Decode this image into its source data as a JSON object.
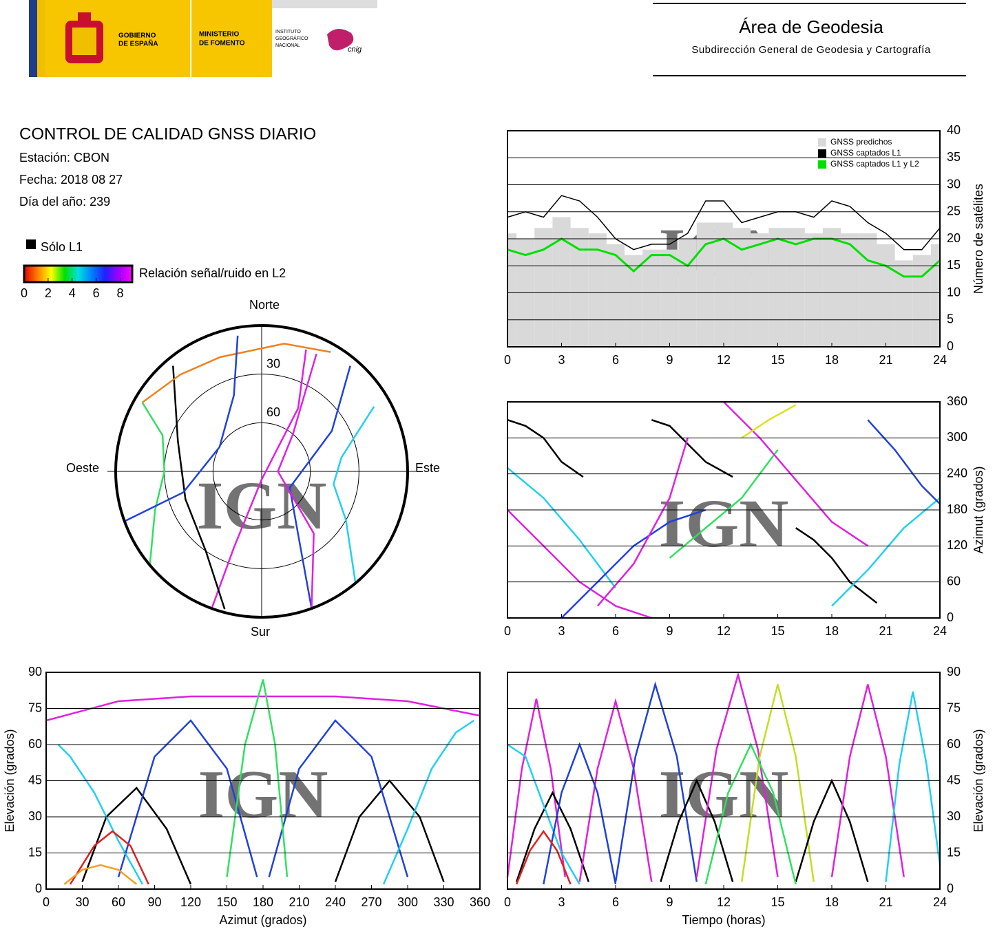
{
  "header": {
    "gobierno": [
      "GOBIERNO",
      "DE ESPAÑA"
    ],
    "ministerio": [
      "MINISTERIO",
      "DE FOMENTO"
    ],
    "instituto": [
      "INSTITUTO",
      "GEOGRÁFICO",
      "NACIONAL"
    ],
    "cnig": "cnig",
    "area": "Área de Geodesia",
    "subdireccion": "Subdirección General de Geodesia y Cartografía"
  },
  "report": {
    "title": "CONTROL DE CALIDAD GNSS DIARIO",
    "station": "Estación: CBON",
    "date": "Fecha: 2018 08 27",
    "doy": "Día del año: 239",
    "l1_only": {
      "label": "Sólo L1",
      "color": "#000000"
    },
    "colorbar": {
      "label": "Relación señal/ruido en L2",
      "range": [
        0,
        9
      ],
      "ticks": [
        0,
        2,
        4,
        6,
        8
      ],
      "colors": [
        "#e00000",
        "#ff8000",
        "#ffff00",
        "#00e000",
        "#00e0e0",
        "#0080ff",
        "#2020ff",
        "#a000ff",
        "#ff00ff"
      ]
    }
  },
  "watermark": "IGN",
  "chart_data": [
    {
      "type": "skyplot",
      "directions": {
        "north": "Norte",
        "south": "Sur",
        "west": "Oeste",
        "east": "Este"
      },
      "rings": [
        30,
        60
      ],
      "series": [
        {
          "color": "#e020e0",
          "azimuth": [
            200,
            200,
            180,
            30,
            20
          ],
          "elevation": [
            0,
            40,
            85,
            45,
            10
          ]
        },
        {
          "color": "#2040e0",
          "azimuth": [
            160,
            150,
            120,
            60,
            40
          ],
          "elevation": [
            0,
            45,
            70,
            40,
            5
          ]
        },
        {
          "color": "#000000",
          "azimuth": [
            195,
            215,
            250,
            290,
            320
          ],
          "elevation": [
            2,
            30,
            40,
            35,
            5
          ]
        },
        {
          "color": "#20d0f0",
          "azimuth": [
            140,
            120,
            100,
            80,
            60
          ],
          "elevation": [
            0,
            30,
            45,
            40,
            10
          ]
        },
        {
          "color": "#30e060",
          "azimuth": [
            230,
            250,
            270,
            290,
            300
          ],
          "elevation": [
            0,
            20,
            30,
            25,
            5
          ]
        },
        {
          "color": "#f08020",
          "azimuth": [
            300,
            320,
            340,
            10,
            30
          ],
          "elevation": [
            5,
            12,
            15,
            10,
            5
          ]
        },
        {
          "color": "#e020e0",
          "azimuth": [
            160,
            140,
            90,
            40,
            25
          ],
          "elevation": [
            0,
            40,
            80,
            60,
            10
          ]
        },
        {
          "color": "#2040e0",
          "azimuth": [
            250,
            255,
            300,
            340,
            350
          ],
          "elevation": [
            0,
            40,
            60,
            40,
            5
          ]
        }
      ]
    },
    {
      "type": "steps",
      "ylabel": "Número de satélites",
      "xlim": [
        0,
        24
      ],
      "xticks": [
        0,
        3,
        6,
        9,
        12,
        15,
        18,
        21,
        24
      ],
      "ylim": [
        0,
        40
      ],
      "yticks": [
        0,
        5,
        10,
        15,
        20,
        25,
        30,
        35,
        40
      ],
      "grid": true,
      "y_axis_side": "right",
      "legend": "top-right",
      "x": [
        0,
        1,
        2,
        3,
        4,
        5,
        6,
        7,
        8,
        9,
        10,
        11,
        12,
        13,
        14,
        15,
        16,
        17,
        18,
        19,
        20,
        21,
        22,
        23,
        24
      ],
      "series": [
        {
          "name": "GNSS predichos",
          "color": "#d9d9d9",
          "style": "area",
          "values": [
            21,
            20,
            22,
            24,
            22,
            21,
            19,
            17,
            18,
            18,
            20,
            23,
            23,
            22,
            21,
            22,
            22,
            21,
            22,
            21,
            21,
            19,
            16,
            17,
            19
          ]
        },
        {
          "name": "GNSS captados L1",
          "color": "#000000",
          "style": "line",
          "values": [
            24,
            25,
            24,
            28,
            27,
            24,
            20,
            18,
            19,
            19,
            21,
            27,
            27,
            23,
            24,
            25,
            25,
            24,
            27,
            26,
            23,
            21,
            18,
            18,
            22
          ]
        },
        {
          "name": "GNSS captados L1 y L2",
          "color": "#00e000",
          "style": "line",
          "values": [
            18,
            17,
            18,
            20,
            18,
            18,
            17,
            14,
            17,
            17,
            15,
            19,
            20,
            18,
            19,
            20,
            19,
            20,
            20,
            19,
            16,
            15,
            13,
            13,
            16
          ]
        }
      ]
    },
    {
      "type": "tracks",
      "ylabel": "Azimut (grados)",
      "xlim": [
        0,
        24
      ],
      "xticks": [
        0,
        3,
        6,
        9,
        12,
        15,
        18,
        21,
        24
      ],
      "ylim": [
        0,
        360
      ],
      "yticks": [
        0,
        60,
        120,
        180,
        240,
        300,
        360
      ],
      "grid": true,
      "y_axis_side": "right",
      "series": [
        {
          "color": "#000000",
          "x": [
            0,
            1,
            2,
            3,
            4.2
          ],
          "values": [
            330,
            320,
            300,
            260,
            235
          ]
        },
        {
          "color": "#e020e0",
          "x": [
            0,
            2,
            4,
            6,
            8
          ],
          "values": [
            180,
            120,
            60,
            20,
            0
          ]
        },
        {
          "color": "#20d0f0",
          "x": [
            0,
            2,
            4,
            6
          ],
          "values": [
            250,
            200,
            130,
            50
          ]
        },
        {
          "color": "#2040e0",
          "x": [
            3,
            5,
            7,
            9,
            11
          ],
          "values": [
            0,
            60,
            120,
            160,
            180
          ]
        },
        {
          "color": "#000000",
          "x": [
            8,
            9,
            10,
            11,
            12.5
          ],
          "values": [
            330,
            320,
            290,
            260,
            235
          ]
        },
        {
          "color": "#30e060",
          "x": [
            9,
            11,
            13,
            15
          ],
          "values": [
            100,
            150,
            200,
            280
          ]
        },
        {
          "color": "#e020e0",
          "x": [
            12,
            14,
            16,
            18,
            20
          ],
          "values": [
            360,
            300,
            230,
            160,
            120
          ]
        },
        {
          "color": "#000000",
          "x": [
            16,
            17,
            18,
            19,
            20.5
          ],
          "values": [
            150,
            130,
            100,
            60,
            25
          ]
        },
        {
          "color": "#e0e020",
          "x": [
            13,
            14.5,
            16
          ],
          "values": [
            300,
            330,
            355
          ]
        },
        {
          "color": "#20d0f0",
          "x": [
            18,
            20,
            22,
            24
          ],
          "values": [
            20,
            80,
            150,
            200
          ]
        },
        {
          "color": "#2040e0",
          "x": [
            20,
            21.5,
            23,
            24
          ],
          "values": [
            330,
            280,
            220,
            190
          ]
        },
        {
          "color": "#e020e0",
          "x": [
            5,
            7,
            9,
            10
          ],
          "values": [
            20,
            90,
            200,
            300
          ]
        }
      ]
    },
    {
      "type": "tracks",
      "ylabel": "Elevación (grados)",
      "xlabel": "Azimut (grados)",
      "xlim": [
        0,
        360
      ],
      "xticks": [
        0,
        30,
        60,
        90,
        120,
        150,
        180,
        210,
        240,
        270,
        300,
        330,
        360
      ],
      "ylim": [
        0,
        90
      ],
      "yticks": [
        0,
        15,
        30,
        45,
        60,
        75,
        90
      ],
      "grid": true,
      "y_axis_side": "left",
      "series": [
        {
          "color": "#e020e0",
          "x": [
            0,
            60,
            120,
            180,
            240,
            300,
            360
          ],
          "values": [
            70,
            78,
            80,
            80,
            80,
            78,
            72
          ]
        },
        {
          "color": "#000000",
          "x": [
            30,
            50,
            75,
            100,
            120
          ],
          "values": [
            3,
            30,
            42,
            25,
            2
          ]
        },
        {
          "color": "#000000",
          "x": [
            240,
            260,
            285,
            310,
            330
          ],
          "values": [
            3,
            30,
            45,
            30,
            3
          ]
        },
        {
          "color": "#2040e0",
          "x": [
            60,
            90,
            120,
            150,
            175
          ],
          "values": [
            5,
            55,
            70,
            50,
            5
          ]
        },
        {
          "color": "#2040e0",
          "x": [
            185,
            210,
            240,
            270,
            300
          ],
          "values": [
            5,
            50,
            70,
            55,
            5
          ]
        },
        {
          "color": "#20d0f0",
          "x": [
            10,
            20,
            40,
            60,
            80
          ],
          "values": [
            60,
            55,
            40,
            20,
            2
          ]
        },
        {
          "color": "#e02020",
          "x": [
            20,
            40,
            55,
            70,
            85
          ],
          "values": [
            2,
            18,
            24,
            18,
            2
          ]
        },
        {
          "color": "#30e060",
          "x": [
            150,
            165,
            180,
            190,
            200
          ],
          "values": [
            5,
            60,
            87,
            60,
            5
          ]
        },
        {
          "color": "#20d0f0",
          "x": [
            280,
            300,
            320,
            340,
            355
          ],
          "values": [
            2,
            25,
            50,
            65,
            70
          ]
        },
        {
          "color": "#f0a020",
          "x": [
            15,
            30,
            45,
            60,
            75
          ],
          "values": [
            2,
            8,
            10,
            8,
            2
          ]
        }
      ]
    },
    {
      "type": "tracks",
      "ylabel": "Elevación (grados)",
      "xlabel": "Tiempo (horas)",
      "xlim": [
        0,
        24
      ],
      "xticks": [
        0,
        3,
        6,
        9,
        12,
        15,
        18,
        21,
        24
      ],
      "ylim": [
        0,
        90
      ],
      "yticks": [
        0,
        15,
        30,
        45,
        60,
        75,
        90
      ],
      "grid": true,
      "y_axis_side": "right",
      "series": [
        {
          "color": "#e020e0",
          "x": [
            0,
            0.8,
            1.6,
            2.4,
            3.2
          ],
          "values": [
            5,
            50,
            79,
            50,
            5
          ]
        },
        {
          "color": "#000000",
          "x": [
            0.5,
            1.5,
            2.5,
            3.5,
            4.5
          ],
          "values": [
            3,
            25,
            40,
            25,
            3
          ]
        },
        {
          "color": "#e020e0",
          "x": [
            4,
            5,
            6,
            7,
            8
          ],
          "values": [
            3,
            50,
            78,
            50,
            3
          ]
        },
        {
          "color": "#2040e0",
          "x": [
            6,
            7.1,
            8.2,
            9.4,
            10.5
          ],
          "values": [
            3,
            55,
            85,
            55,
            3
          ]
        },
        {
          "color": "#000000",
          "x": [
            8.5,
            9.5,
            10.5,
            11.5,
            12.5
          ],
          "values": [
            3,
            28,
            45,
            28,
            3
          ]
        },
        {
          "color": "#e020e0",
          "x": [
            10.5,
            11.6,
            12.8,
            13.9,
            15
          ],
          "values": [
            5,
            58,
            89,
            58,
            5
          ]
        },
        {
          "color": "#c0e020",
          "x": [
            13,
            14,
            15,
            16,
            17
          ],
          "values": [
            3,
            55,
            85,
            55,
            3
          ]
        },
        {
          "color": "#000000",
          "x": [
            16,
            17,
            18,
            19,
            20
          ],
          "values": [
            3,
            28,
            45,
            28,
            3
          ]
        },
        {
          "color": "#e020e0",
          "x": [
            18,
            19,
            20,
            21,
            22
          ],
          "values": [
            5,
            55,
            85,
            55,
            5
          ]
        },
        {
          "color": "#20d0f0",
          "x": [
            21,
            21.75,
            22.5,
            23.25,
            24
          ],
          "values": [
            3,
            52,
            82,
            52,
            10
          ]
        },
        {
          "color": "#20d0f0",
          "x": [
            0,
            1,
            2,
            3,
            4
          ],
          "values": [
            60,
            55,
            35,
            15,
            2
          ]
        },
        {
          "color": "#2040e0",
          "x": [
            2,
            3,
            4,
            5,
            6
          ],
          "values": [
            2,
            40,
            60,
            40,
            2
          ]
        },
        {
          "color": "#30e060",
          "x": [
            11,
            12.25,
            13.5,
            14.75,
            16
          ],
          "values": [
            2,
            40,
            60,
            40,
            2
          ]
        },
        {
          "color": "#e02020",
          "x": [
            0.5,
            1.25,
            2,
            2.75,
            3.5
          ],
          "values": [
            2,
            16,
            24,
            16,
            2
          ]
        }
      ]
    }
  ]
}
